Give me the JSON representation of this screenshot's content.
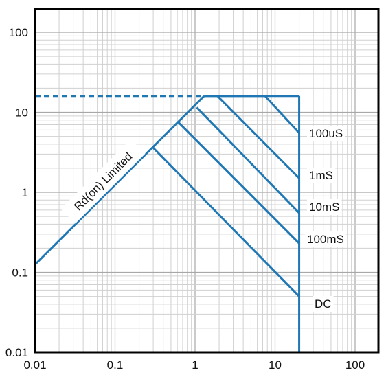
{
  "chart_data": {
    "type": "line",
    "title": "",
    "xlabel": "",
    "ylabel": "",
    "xscale": "log",
    "yscale": "log",
    "xlim": [
      0.01,
      200
    ],
    "ylim": [
      0.01,
      200
    ],
    "grid": true,
    "x_ticks": [
      "0.01",
      "0.1",
      "1",
      "10",
      "100"
    ],
    "y_ticks": [
      "0.01",
      "0.1",
      "1",
      "10",
      "100"
    ],
    "line_color": "#1f77b4",
    "current_limit": {
      "value": 16,
      "x_from": 0.01,
      "x_to": 1.3,
      "dashed": true
    },
    "voltage_limit_x": 20,
    "series": [
      {
        "name": "Rd(on) Limited",
        "points": [
          [
            0.01,
            0.125
          ],
          [
            1.3,
            16
          ]
        ]
      },
      {
        "name": "100uS",
        "points": [
          [
            1.3,
            16
          ],
          [
            7.5,
            16
          ],
          [
            20,
            5.5
          ]
        ]
      },
      {
        "name": "1mS",
        "points": [
          [
            1.9,
            16
          ],
          [
            20,
            1.5
          ]
        ]
      },
      {
        "name": "10mS",
        "points": [
          [
            1.05,
            11.5
          ],
          [
            20,
            0.55
          ]
        ]
      },
      {
        "name": "100mS",
        "points": [
          [
            0.62,
            7.5
          ],
          [
            20,
            0.23
          ]
        ]
      },
      {
        "name": "DC",
        "points": [
          [
            0.3,
            3.6
          ],
          [
            20,
            0.05
          ]
        ]
      }
    ],
    "annotations": [
      "100uS",
      "1mS",
      "10mS",
      "100mS",
      "DC",
      "Rd(on) Limited"
    ]
  },
  "colors": {
    "line": "#1f77b4",
    "frame": "#000000",
    "grid_major": "#a8a8a8",
    "grid_minor": "#d0d0d0"
  }
}
